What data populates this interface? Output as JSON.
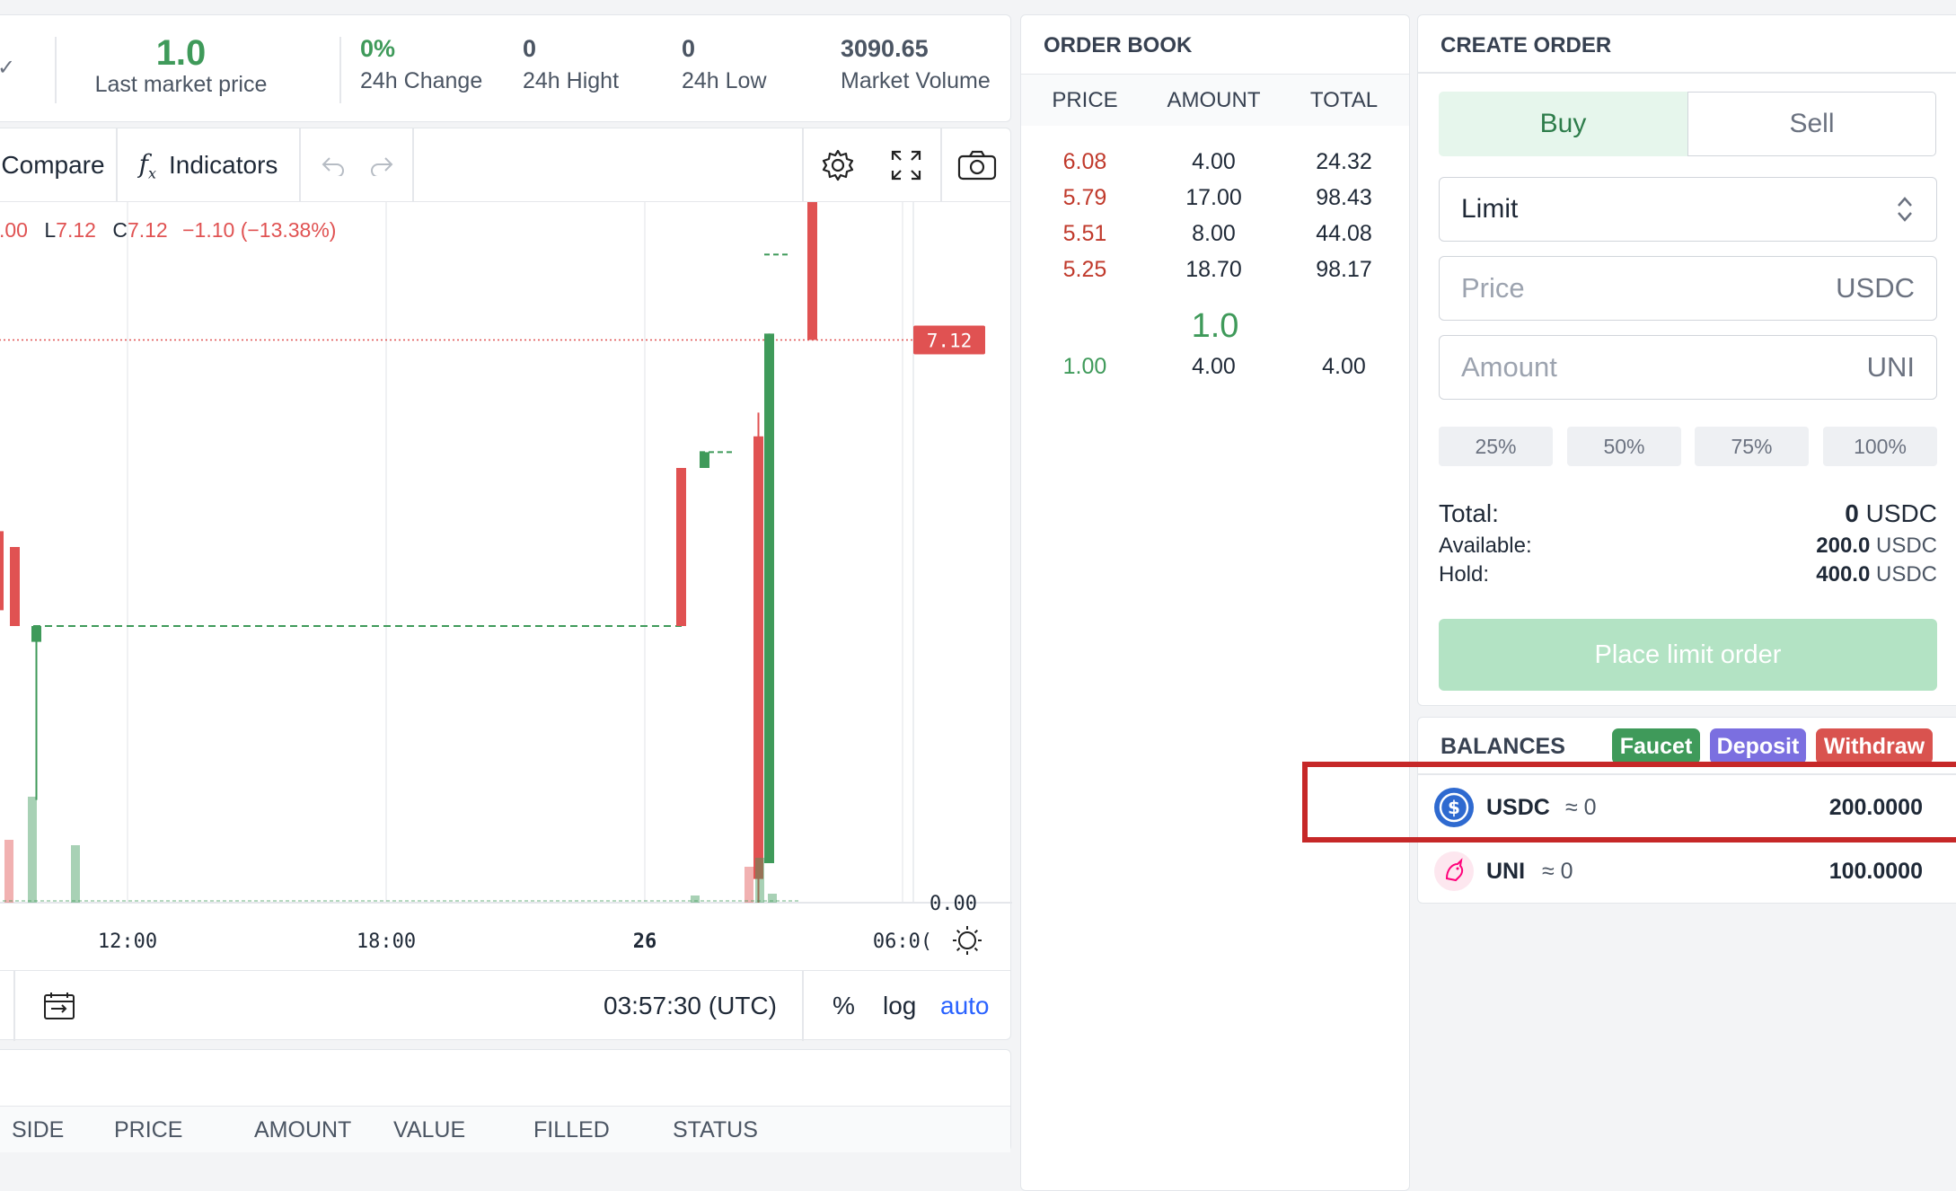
{
  "stats": {
    "last_price": "1.0",
    "last_price_label": "Last market price",
    "change": "0%",
    "change_label": "24h Change",
    "high": "0",
    "high_label": "24h Hight",
    "low": "0",
    "low_label": "24h Low",
    "volume": "3090.65",
    "volume_label": "Market Volume"
  },
  "toolbar": {
    "compare": "Compare",
    "indicators": "Indicators"
  },
  "chart_legend": {
    "o": ".00",
    "l_label": "L",
    "l": "7.12",
    "c_label": "C",
    "c": "7.12",
    "chg": "−1.10 (−13.38%)"
  },
  "chart_data": {
    "type": "candlestick",
    "x_ticks": [
      "12:00",
      "18:00",
      "26",
      "06:0("
    ],
    "price_label": "7.12",
    "axis_label": "0.00",
    "candles": [
      {
        "o": 4.7,
        "h": 4.7,
        "l": 3.7,
        "c": 3.7,
        "dir": "down"
      },
      {
        "o": 4.5,
        "h": 4.5,
        "l": 3.5,
        "c": 3.5,
        "dir": "down"
      },
      {
        "o": 3.5,
        "h": 3.5,
        "l": 1.3,
        "c": 3.3,
        "dir": "up"
      },
      {
        "o": 4.0,
        "h": 4.0,
        "l": 4.0,
        "c": 4.0,
        "dir": "flat"
      },
      {
        "o": 5.5,
        "h": 5.5,
        "l": 3.5,
        "c": 3.5,
        "dir": "down"
      },
      {
        "o": 5.5,
        "h": 5.7,
        "l": 5.5,
        "c": 5.7,
        "dir": "up"
      },
      {
        "o": 5.7,
        "h": 5.7,
        "l": 5.7,
        "c": 5.7,
        "dir": "flat"
      },
      {
        "o": 5.9,
        "h": 6.2,
        "l": 0.0,
        "c": 0.3,
        "dir": "down"
      },
      {
        "o": 0.5,
        "h": 7.2,
        "l": 0.5,
        "c": 7.2,
        "dir": "up"
      },
      {
        "o": 8.2,
        "h": 8.2,
        "l": 8.2,
        "c": 8.2,
        "dir": "flat"
      },
      {
        "o": 9.2,
        "h": 9.2,
        "l": 7.12,
        "c": 7.12,
        "dir": "down"
      }
    ]
  },
  "bottombar": {
    "time": "03:57:30 (UTC)",
    "percent": "%",
    "log": "log",
    "auto": "auto"
  },
  "orders_table": {
    "columns": [
      "SIDE",
      "PRICE",
      "AMOUNT",
      "VALUE",
      "FILLED",
      "STATUS"
    ]
  },
  "orderbook": {
    "title": "ORDER BOOK",
    "columns": [
      "PRICE",
      "AMOUNT",
      "TOTAL"
    ],
    "asks": [
      {
        "price": "6.08",
        "amount": "4.00",
        "total": "24.32"
      },
      {
        "price": "5.79",
        "amount": "17.00",
        "total": "98.43"
      },
      {
        "price": "5.51",
        "amount": "8.00",
        "total": "44.08"
      },
      {
        "price": "5.25",
        "amount": "18.70",
        "total": "98.17"
      }
    ],
    "mid": "1.0",
    "bids": [
      {
        "price": "1.00",
        "amount": "4.00",
        "total": "4.00"
      }
    ]
  },
  "create_order": {
    "title": "CREATE ORDER",
    "buy": "Buy",
    "sell": "Sell",
    "order_type": "Limit",
    "price_placeholder": "Price",
    "price_unit": "USDC",
    "amount_placeholder": "Amount",
    "amount_unit": "UNI",
    "pcts": [
      "25%",
      "50%",
      "75%",
      "100%"
    ],
    "total_label": "Total:",
    "total_value": "0",
    "total_unit": "USDC",
    "available_label": "Available:",
    "available_value": "200.0",
    "available_unit": "USDC",
    "hold_label": "Hold:",
    "hold_value": "400.0",
    "hold_unit": "USDC",
    "submit": "Place limit order"
  },
  "balances": {
    "title": "BALANCES",
    "faucet": "Faucet",
    "deposit": "Deposit",
    "withdraw": "Withdraw",
    "items": [
      {
        "symbol": "USDC",
        "approx": "≈ 0",
        "amount": "200.0000"
      },
      {
        "symbol": "UNI",
        "approx": "≈ 0",
        "amount": "100.0000"
      }
    ]
  },
  "colors": {
    "up": "#3f9a5a",
    "down": "#e05252",
    "accent": "#2962ff",
    "faucet": "#3f9a5a",
    "deposit": "#7b6fe0",
    "withdraw": "#d9534f",
    "highlight": "#c62828"
  }
}
